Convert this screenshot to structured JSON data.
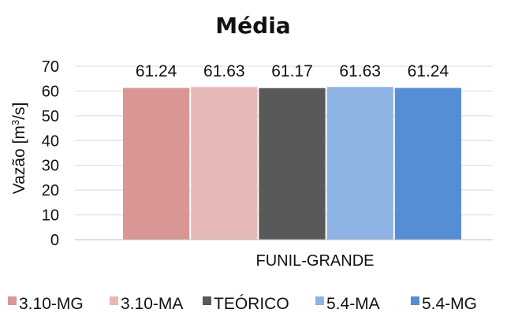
{
  "chart_data": {
    "type": "bar",
    "title": "Média",
    "ylabel": "Vazão [m³/s]",
    "ylabel_parts": {
      "prefix": "Vazão [m",
      "sup": "3",
      "suffix": "/s]"
    },
    "xlabel": "",
    "categories": [
      "FUNIL-GRANDE"
    ],
    "ylim": [
      0,
      70
    ],
    "yticks": [
      0,
      10,
      20,
      30,
      40,
      50,
      60,
      70
    ],
    "grid": true,
    "legend_position": "bottom",
    "series": [
      {
        "name": "3.10-MG",
        "values": [
          61.24
        ],
        "color": "#d99694",
        "label": "61.24"
      },
      {
        "name": "3.10-MA",
        "values": [
          61.63
        ],
        "color": "#e6b9b8",
        "label": "61.63"
      },
      {
        "name": "TEÓRICO",
        "values": [
          61.17
        ],
        "color": "#595959",
        "label": "61.17"
      },
      {
        "name": "5.4-MA",
        "values": [
          61.63
        ],
        "color": "#8eb4e3",
        "label": "61.63"
      },
      {
        "name": "5.4-MG",
        "values": [
          61.24
        ],
        "color": "#558ed5",
        "label": "61.24"
      }
    ]
  }
}
